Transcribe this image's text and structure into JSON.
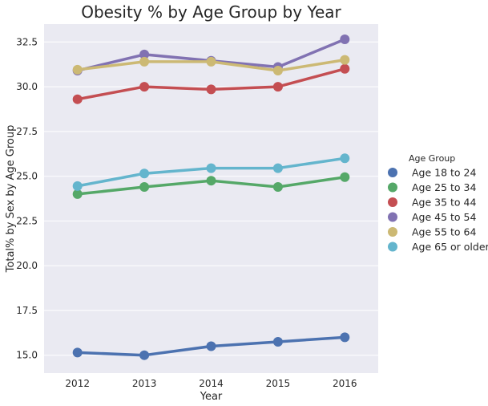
{
  "chart_data": {
    "type": "line",
    "title": "Obesity % by Age Group by Year",
    "xlabel": "Year",
    "ylabel": "Total% by Sex by Age Group",
    "categories": [
      "2012",
      "2013",
      "2014",
      "2015",
      "2016"
    ],
    "ylim": [
      14.0,
      33.5
    ],
    "yticks": [
      15.0,
      17.5,
      20.0,
      22.5,
      25.0,
      27.5,
      30.0,
      32.5
    ],
    "ytick_labels": [
      "15.0",
      "17.5",
      "20.0",
      "22.5",
      "25.0",
      "27.5",
      "30.0",
      "32.5"
    ],
    "grid": true,
    "legend": {
      "title": "Age Group",
      "placement": "right"
    },
    "series": [
      {
        "name": "Age 18 to 24",
        "color": "#4c72b0",
        "values": [
          15.15,
          15.0,
          15.5,
          15.75,
          16.0
        ]
      },
      {
        "name": "Age 25 to 34",
        "color": "#55a868",
        "values": [
          24.0,
          24.4,
          24.75,
          24.4,
          24.95
        ]
      },
      {
        "name": "Age 35 to 44",
        "color": "#c44e52",
        "values": [
          29.3,
          30.0,
          29.85,
          30.0,
          31.0
        ]
      },
      {
        "name": "Age 45 to 54",
        "color": "#8172b2",
        "values": [
          30.9,
          31.8,
          31.45,
          31.1,
          32.65
        ]
      },
      {
        "name": "Age 55 to 64",
        "color": "#ccb974",
        "values": [
          30.95,
          31.4,
          31.4,
          30.9,
          31.5
        ]
      },
      {
        "name": "Age 65 or older",
        "color": "#64b5cd",
        "values": [
          24.45,
          25.15,
          25.45,
          25.45,
          26.0
        ]
      }
    ],
    "colors": {
      "plot_background": "#eaeaf2",
      "grid": "#ffffff"
    }
  }
}
